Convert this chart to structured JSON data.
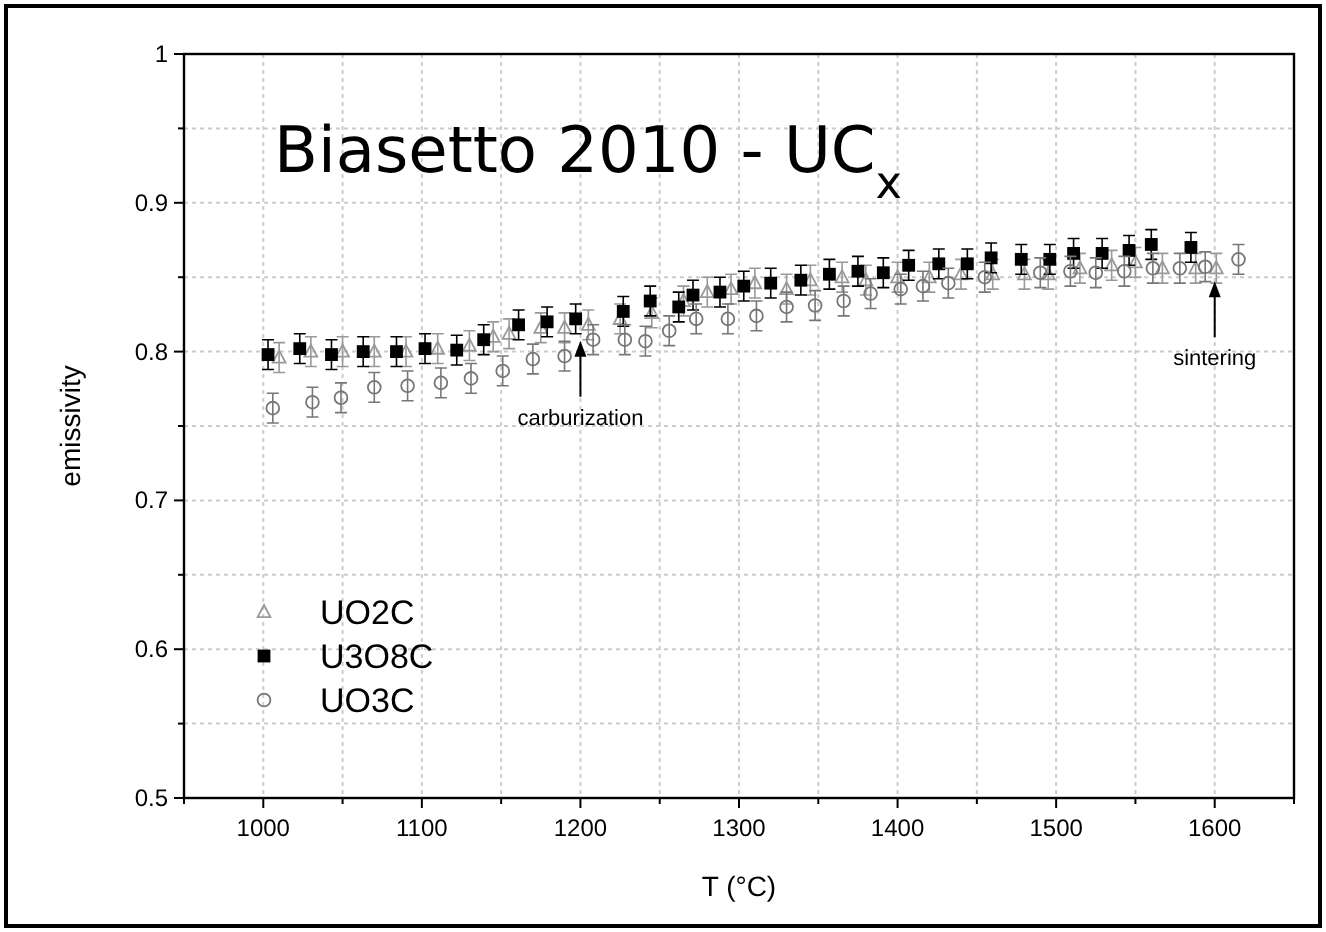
{
  "chart_data": {
    "type": "scatter",
    "title": "Biasetto 2010 - UC$_{x}$",
    "xlabel": "T (°C)",
    "ylabel": "emissivity",
    "xlim": [
      950,
      1650
    ],
    "xticks": [
      {
        "value": 950,
        "label": null
      },
      1000,
      {
        "value": 1050,
        "label": null
      },
      1100,
      {
        "value": 1150,
        "label": null
      },
      1200,
      {
        "value": 1250,
        "label": null
      },
      1300,
      {
        "value": 1350,
        "label": null
      },
      1400,
      {
        "value": 1450,
        "label": null
      },
      1500,
      {
        "value": 1550,
        "label": null
      },
      1600,
      {
        "value": 1650,
        "label": null
      }
    ],
    "ylim": [
      0.5,
      1.0
    ],
    "yticks": [
      0.5,
      {
        "value": 0.55,
        "label": null
      },
      0.6,
      {
        "value": 0.65,
        "label": null
      },
      0.7,
      {
        "value": 0.75,
        "label": null
      },
      0.8,
      {
        "value": 0.85,
        "label": null
      },
      0.9,
      {
        "value": 0.95,
        "label": null
      },
      1.0
    ],
    "grid": true,
    "legend": "left",
    "annotations": [
      {
        "text": "carburization",
        "x": 1200,
        "y": 0.81
      },
      {
        "text": "sintering",
        "x": 1600,
        "y": 0.85
      }
    ],
    "series": [
      {
        "name": "UO2C",
        "color": "#999999",
        "marker": "triangle",
        "x": [
          1010,
          1030,
          1050,
          1070,
          1090,
          1110,
          1130,
          1145,
          1155,
          1175,
          1190,
          1205,
          1225,
          1245,
          1265,
          1280,
          1295,
          1310,
          1330,
          1345,
          1365,
          1380,
          1400,
          1420,
          1440,
          1460,
          1480,
          1495,
          1515,
          1535,
          1550,
          1567,
          1588,
          1601
        ],
        "values": [
          0.796,
          0.8,
          0.8,
          0.8,
          0.8,
          0.802,
          0.804,
          0.81,
          0.812,
          0.816,
          0.816,
          0.818,
          0.822,
          0.826,
          0.834,
          0.84,
          0.842,
          0.846,
          0.842,
          0.848,
          0.85,
          0.848,
          0.85,
          0.85,
          0.852,
          0.852,
          0.852,
          0.852,
          0.856,
          0.858,
          0.86,
          0.856,
          0.856,
          0.856
        ],
        "errors": [
          0.01,
          0.01,
          0.01,
          0.01,
          0.01,
          0.01,
          0.01,
          0.01,
          0.01,
          0.01,
          0.01,
          0.01,
          0.01,
          0.01,
          0.01,
          0.01,
          0.01,
          0.01,
          0.01,
          0.01,
          0.01,
          0.01,
          0.01,
          0.01,
          0.01,
          0.01,
          0.01,
          0.01,
          0.01,
          0.01,
          0.01,
          0.01,
          0.01,
          0.01
        ]
      },
      {
        "name": "U3O8C",
        "color": "#000000",
        "marker": "square",
        "x": [
          1003,
          1023,
          1043,
          1063,
          1084,
          1102,
          1122,
          1139,
          1161,
          1179,
          1197,
          1227,
          1244,
          1262,
          1271,
          1288,
          1303,
          1320,
          1339,
          1357,
          1375,
          1391,
          1407,
          1426,
          1444,
          1459,
          1478,
          1496,
          1511,
          1529,
          1546,
          1560,
          1585
        ],
        "values": [
          0.798,
          0.802,
          0.798,
          0.8,
          0.8,
          0.802,
          0.801,
          0.808,
          0.818,
          0.82,
          0.822,
          0.827,
          0.834,
          0.83,
          0.838,
          0.84,
          0.844,
          0.846,
          0.848,
          0.852,
          0.854,
          0.853,
          0.858,
          0.859,
          0.859,
          0.863,
          0.862,
          0.862,
          0.866,
          0.866,
          0.868,
          0.872,
          0.87
        ],
        "errors": [
          0.01,
          0.01,
          0.01,
          0.01,
          0.01,
          0.01,
          0.01,
          0.01,
          0.01,
          0.01,
          0.01,
          0.01,
          0.01,
          0.01,
          0.01,
          0.01,
          0.01,
          0.01,
          0.01,
          0.01,
          0.01,
          0.01,
          0.01,
          0.01,
          0.01,
          0.01,
          0.01,
          0.01,
          0.01,
          0.01,
          0.01,
          0.01,
          0.01
        ]
      },
      {
        "name": "UO3C",
        "color": "#777777",
        "marker": "circle",
        "x": [
          1006,
          1031,
          1049,
          1070,
          1091,
          1112,
          1131,
          1151,
          1170,
          1190,
          1208,
          1228,
          1241,
          1256,
          1273,
          1293,
          1311,
          1330,
          1348,
          1366,
          1383,
          1402,
          1416,
          1432,
          1455,
          1490,
          1509,
          1525,
          1543,
          1561,
          1578,
          1594,
          1615
        ],
        "values": [
          0.762,
          0.766,
          0.769,
          0.776,
          0.777,
          0.779,
          0.782,
          0.787,
          0.795,
          0.797,
          0.808,
          0.808,
          0.807,
          0.814,
          0.822,
          0.822,
          0.824,
          0.83,
          0.831,
          0.834,
          0.839,
          0.842,
          0.844,
          0.846,
          0.85,
          0.853,
          0.854,
          0.853,
          0.854,
          0.856,
          0.856,
          0.857,
          0.862
        ],
        "errors": [
          0.01,
          0.01,
          0.01,
          0.01,
          0.01,
          0.01,
          0.01,
          0.01,
          0.01,
          0.01,
          0.01,
          0.01,
          0.01,
          0.01,
          0.01,
          0.01,
          0.01,
          0.01,
          0.01,
          0.01,
          0.01,
          0.01,
          0.01,
          0.01,
          0.01,
          0.01,
          0.01,
          0.01,
          0.01,
          0.01,
          0.01,
          0.01,
          0.01
        ]
      }
    ]
  }
}
